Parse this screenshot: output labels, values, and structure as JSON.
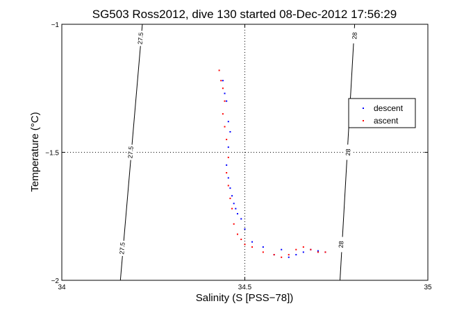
{
  "chart_data": {
    "type": "scatter",
    "title": "SG503 Ross2012, dive 130 started 08-Dec-2012 17:56:29",
    "xlabel": "Salinity (S [PSS−78])",
    "ylabel": "Temperature (°C)",
    "xlim": [
      34,
      35
    ],
    "ylim": [
      -2,
      -1
    ],
    "xticks": [
      34,
      34.5,
      35
    ],
    "xtick_labels": [
      "34",
      "34.5",
      "35"
    ],
    "yticks": [
      -2,
      -1.5,
      -1
    ],
    "ytick_labels": [
      "−2",
      "−1.5",
      "−1"
    ],
    "grid": "dotted",
    "legend_position": "right",
    "density_contours": [
      {
        "label": "27.5",
        "points": [
          [
            34.22,
            -1
          ],
          [
            34.16,
            -2
          ]
        ],
        "label_positions": [
          [
            34.215,
            -1.055
          ],
          [
            34.188,
            -1.5
          ],
          [
            34.165,
            -1.875
          ]
        ]
      },
      {
        "label": "28",
        "points": [
          [
            34.8,
            -1
          ],
          [
            34.76,
            -2
          ]
        ],
        "label_positions": [
          [
            34.8,
            -1.045
          ],
          [
            34.782,
            -1.5
          ],
          [
            34.763,
            -1.86
          ]
        ]
      }
    ],
    "series": [
      {
        "name": "descent",
        "color": "#0000ff",
        "x": [
          34.44,
          34.445,
          34.45,
          34.455,
          34.46,
          34.455,
          34.45,
          34.455,
          34.46,
          34.465,
          34.47,
          34.475,
          34.48,
          34.49,
          34.5,
          34.52,
          34.55,
          34.58,
          34.6,
          34.62,
          34.64,
          34.66,
          34.68,
          34.7,
          34.72
        ],
        "y": [
          -1.22,
          -1.27,
          -1.3,
          -1.38,
          -1.42,
          -1.48,
          -1.55,
          -1.6,
          -1.64,
          -1.67,
          -1.7,
          -1.72,
          -1.74,
          -1.76,
          -1.8,
          -1.85,
          -1.87,
          -1.9,
          -1.88,
          -1.91,
          -1.9,
          -1.89,
          -1.88,
          -1.885,
          -1.89
        ]
      },
      {
        "name": "ascent",
        "color": "#ff0000",
        "x": [
          34.43,
          34.435,
          34.44,
          34.445,
          34.44,
          34.445,
          34.45,
          34.455,
          34.45,
          34.455,
          34.46,
          34.465,
          34.47,
          34.48,
          34.49,
          34.5,
          34.52,
          34.55,
          34.58,
          34.6,
          34.62,
          34.64,
          34.66,
          34.68,
          34.7,
          34.72
        ],
        "y": [
          -1.18,
          -1.22,
          -1.25,
          -1.3,
          -1.35,
          -1.4,
          -1.45,
          -1.52,
          -1.58,
          -1.63,
          -1.68,
          -1.72,
          -1.78,
          -1.82,
          -1.84,
          -1.86,
          -1.87,
          -1.89,
          -1.9,
          -1.91,
          -1.9,
          -1.88,
          -1.87,
          -1.88,
          -1.89,
          -1.89
        ]
      }
    ]
  }
}
